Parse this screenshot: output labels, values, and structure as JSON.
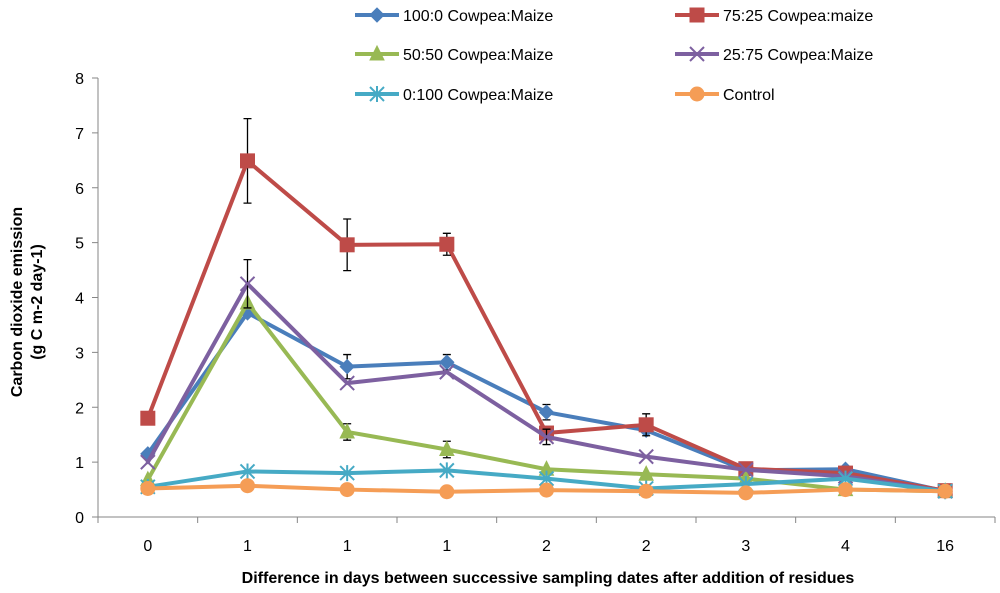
{
  "chart_data": {
    "type": "line",
    "title": "",
    "xlabel": "Difference in days between successive sampling dates after addition of residues",
    "ylabel": "Carbon dioxide emission",
    "ylabel_line2": "(g C m-2 day-1)",
    "categories": [
      "0",
      "1",
      "1",
      "1",
      "2",
      "2",
      "3",
      "4",
      "16"
    ],
    "ylim": [
      0,
      8
    ],
    "yticks": [
      0,
      1,
      2,
      3,
      4,
      5,
      6,
      7,
      8
    ],
    "grid": false,
    "legend_position": "top",
    "series": [
      {
        "name": "100:0 Cowpea:Maize",
        "color": "#4a7ebb",
        "marker": "diamond",
        "values": [
          1.15,
          3.72,
          2.74,
          2.82,
          1.91,
          1.58,
          0.85,
          0.87,
          0.47
        ],
        "errors": [
          0,
          0,
          0.22,
          0.14,
          0.14,
          0,
          0,
          0,
          0
        ]
      },
      {
        "name": "75:25 Cowpea:maize",
        "color": "#be4b48",
        "marker": "square",
        "values": [
          1.8,
          6.49,
          4.96,
          4.97,
          1.53,
          1.68,
          0.88,
          0.8,
          0.48
        ],
        "errors": [
          0,
          0.77,
          0.47,
          0.2,
          0,
          0.2,
          0,
          0,
          0
        ]
      },
      {
        "name": "50:50 Cowpea:Maize",
        "color": "#98b954",
        "marker": "triangle",
        "values": [
          0.68,
          3.9,
          1.55,
          1.23,
          0.87,
          0.78,
          0.7,
          0.5,
          0.47
        ],
        "errors": [
          0,
          0,
          0.15,
          0.15,
          0,
          0,
          0,
          0,
          0
        ]
      },
      {
        "name": "25:75  Cowpea:Maize",
        "color": "#7d60a0",
        "marker": "x",
        "values": [
          1.0,
          4.25,
          2.44,
          2.64,
          1.46,
          1.1,
          0.86,
          0.74,
          0.47
        ],
        "errors": [
          0,
          0.44,
          0,
          0,
          0.14,
          0,
          0,
          0,
          0
        ]
      },
      {
        "name": "0:100 Cowpea:Maize",
        "color": "#46aac5",
        "marker": "star",
        "values": [
          0.55,
          0.83,
          0.8,
          0.85,
          0.7,
          0.52,
          0.6,
          0.7,
          0.47
        ],
        "errors": [
          0,
          0,
          0,
          0,
          0,
          0,
          0,
          0,
          0
        ]
      },
      {
        "name": "Control",
        "color": "#f59d56",
        "marker": "circle",
        "values": [
          0.52,
          0.57,
          0.5,
          0.46,
          0.49,
          0.47,
          0.44,
          0.5,
          0.47
        ],
        "errors": [
          0,
          0,
          0,
          0,
          0,
          0,
          0,
          0,
          0
        ]
      }
    ]
  }
}
